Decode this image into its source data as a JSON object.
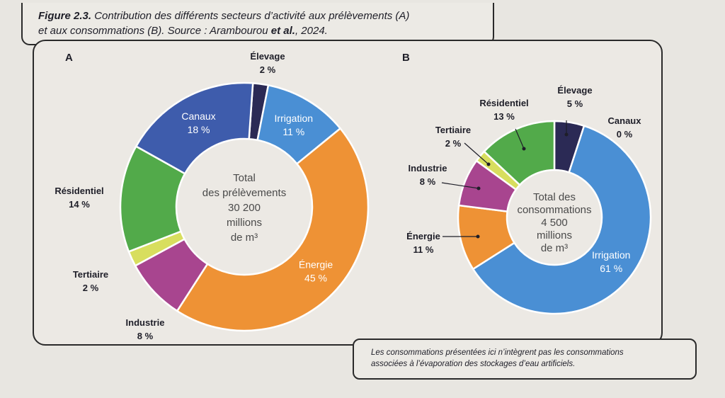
{
  "caption": {
    "figure_label": "Figure 2.3.",
    "text_before": " Contribution des différents secteurs d’activité aux prélèvements (A)",
    "text_line2": "et aux consommations (B). Source : Arambourou ",
    "et_al": "et al.",
    "year": ", 2024."
  },
  "note": {
    "line1": "Les consommations présentées ici n’intègrent pas les consommations",
    "line2": "associées à l’évaporation des stockages d’eau artificiels."
  },
  "colors": {
    "elevage": "#2b2a55",
    "irrigation": "#4a8fd4",
    "energie": "#ee9235",
    "industrie": "#a8458f",
    "tertiaire": "#d8de5e",
    "residentiel": "#52aa4a",
    "canaux": "#3e5cac"
  },
  "chart_data": [
    {
      "type": "pie",
      "panel": "A",
      "center_lines": [
        "Total",
        "des prélèvements",
        "30 200",
        "millions",
        "de m³"
      ],
      "slices": [
        {
          "key": "elevage",
          "label": "Élevage",
          "value": 2,
          "text": "2 %"
        },
        {
          "key": "irrigation",
          "label": "Irrigation",
          "value": 11,
          "text": "11 %"
        },
        {
          "key": "energie",
          "label": "Énergie",
          "value": 45,
          "text": "45 %"
        },
        {
          "key": "industrie",
          "label": "Industrie",
          "value": 8,
          "text": "8 %"
        },
        {
          "key": "tertiaire",
          "label": "Tertiaire",
          "value": 2,
          "text": "2 %"
        },
        {
          "key": "residentiel",
          "label": "Résidentiel",
          "value": 14,
          "text": "14 %"
        },
        {
          "key": "canaux",
          "label": "Canaux",
          "value": 18,
          "text": "18 %"
        }
      ]
    },
    {
      "type": "pie",
      "panel": "B",
      "center_lines": [
        "Total des",
        "consommations",
        "4 500",
        "millions",
        "de m³"
      ],
      "slices": [
        {
          "key": "elevage",
          "label": "Élevage",
          "value": 5,
          "text": "5 %"
        },
        {
          "key": "canaux",
          "label": "Canaux",
          "value": 0,
          "text": "0 %"
        },
        {
          "key": "irrigation",
          "label": "Irrigation",
          "value": 61,
          "text": "61 %"
        },
        {
          "key": "energie",
          "label": "Énergie",
          "value": 11,
          "text": "11 %"
        },
        {
          "key": "industrie",
          "label": "Industrie",
          "value": 8,
          "text": "8 %"
        },
        {
          "key": "tertiaire",
          "label": "Tertiaire",
          "value": 2,
          "text": "2 %"
        },
        {
          "key": "residentiel",
          "label": "Résidentiel",
          "value": 13,
          "text": "13 %"
        }
      ]
    }
  ]
}
